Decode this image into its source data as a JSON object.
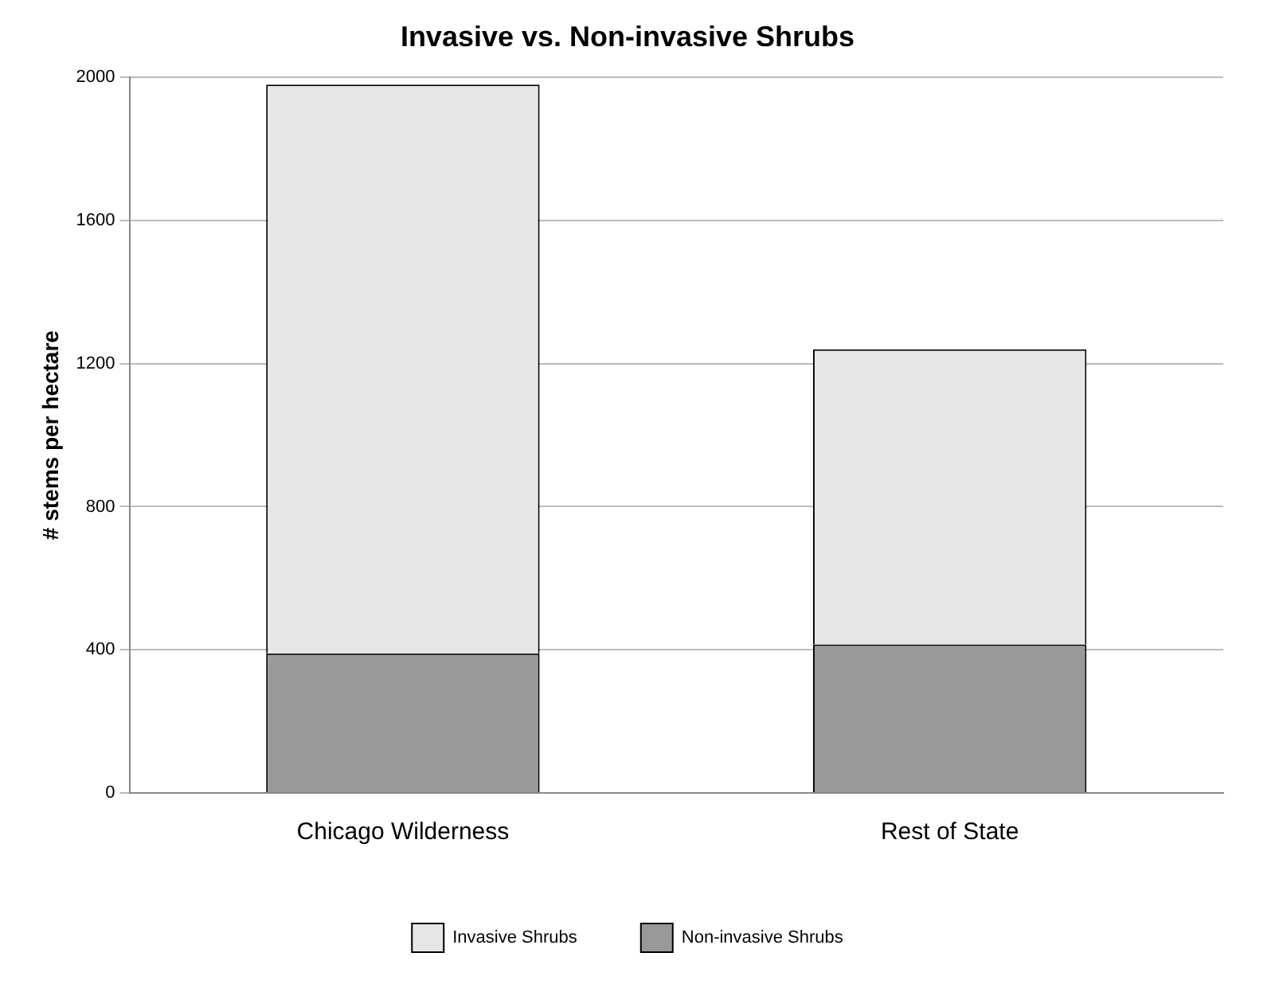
{
  "chart_data": {
    "type": "bar",
    "title": "Invasive vs. Non-invasive Shrubs",
    "ylabel": "# stems per hectare",
    "categories": [
      "Chicago Wilderness",
      "Rest of State"
    ],
    "stacked": true,
    "series": [
      {
        "name": "Non-invasive Shrubs",
        "color": "#999999",
        "values": [
          390,
          415
        ]
      },
      {
        "name": "Invasive Shrubs",
        "color": "#e6e6e6",
        "values": [
          1590,
          825
        ]
      }
    ],
    "ylim": [
      0,
      2000
    ],
    "yticks": [
      0,
      400,
      800,
      1200,
      1600,
      2000
    ],
    "grid": "y",
    "legend": "bottom"
  }
}
